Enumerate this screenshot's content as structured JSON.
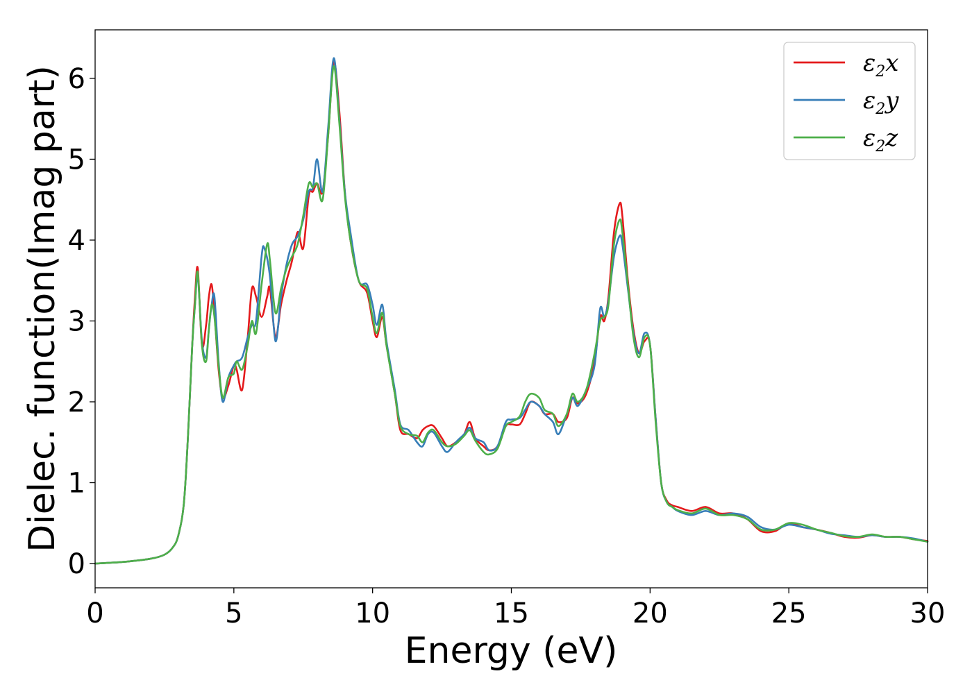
{
  "chart_data": {
    "type": "line",
    "title": "",
    "xlabel": "Energy (eV)",
    "ylabel": "Dielec. function(Imag part)",
    "xlim": [
      0,
      30
    ],
    "ylim": [
      -0.3,
      6.6
    ],
    "xticks": [
      0,
      5,
      10,
      15,
      20,
      25,
      30
    ],
    "yticks": [
      0,
      1,
      2,
      3,
      4,
      5,
      6
    ],
    "grid": false,
    "legend": {
      "position": "top-right"
    },
    "series": [
      {
        "name": "ε₂x",
        "legend_main": "ε",
        "legend_sub": "2",
        "legend_suffix": "x",
        "color": "#e41a1c",
        "x": [
          0,
          1,
          2,
          2.5,
          2.8,
          3.0,
          3.2,
          3.35,
          3.5,
          3.6,
          3.7,
          3.85,
          4.0,
          4.1,
          4.2,
          4.3,
          4.45,
          4.6,
          4.8,
          5.0,
          5.1,
          5.3,
          5.5,
          5.65,
          5.8,
          6.0,
          6.2,
          6.3,
          6.5,
          6.7,
          6.9,
          7.1,
          7.3,
          7.5,
          7.7,
          7.85,
          8.0,
          8.2,
          8.4,
          8.6,
          8.8,
          9.0,
          9.2,
          9.5,
          9.8,
          10.0,
          10.15,
          10.35,
          10.5,
          10.8,
          11.0,
          11.3,
          11.6,
          11.8,
          12.0,
          12.2,
          12.5,
          12.7,
          13.0,
          13.3,
          13.5,
          13.7,
          14.0,
          14.2,
          14.5,
          14.8,
          15.0,
          15.3,
          15.5,
          15.7,
          16.0,
          16.2,
          16.5,
          16.7,
          17.0,
          17.2,
          17.4,
          17.7,
          18.0,
          18.2,
          18.35,
          18.5,
          18.7,
          18.9,
          19.0,
          19.2,
          19.4,
          19.6,
          19.8,
          20.0,
          20.2,
          20.4,
          20.6,
          20.8,
          21.0,
          21.5,
          22.0,
          22.5,
          23.0,
          23.5,
          24.0,
          24.5,
          25.0,
          25.5,
          26.0,
          26.5,
          27.0,
          27.5,
          28.0,
          28.5,
          29.0,
          29.5,
          30.0
        ],
        "y": [
          0.0,
          0.02,
          0.06,
          0.11,
          0.2,
          0.35,
          0.75,
          1.6,
          2.7,
          3.3,
          3.65,
          2.7,
          2.95,
          3.3,
          3.45,
          3.1,
          2.4,
          2.05,
          2.2,
          2.45,
          2.4,
          2.15,
          2.8,
          3.4,
          3.3,
          3.05,
          3.3,
          3.4,
          2.8,
          3.2,
          3.5,
          3.75,
          4.1,
          3.9,
          4.55,
          4.6,
          4.7,
          4.6,
          5.3,
          6.2,
          5.6,
          4.6,
          4.0,
          3.5,
          3.35,
          3.0,
          2.8,
          3.05,
          2.7,
          2.1,
          1.65,
          1.6,
          1.55,
          1.65,
          1.7,
          1.7,
          1.55,
          1.45,
          1.5,
          1.6,
          1.75,
          1.55,
          1.45,
          1.4,
          1.45,
          1.7,
          1.72,
          1.72,
          1.85,
          2.0,
          1.95,
          1.85,
          1.85,
          1.75,
          1.8,
          2.05,
          1.98,
          2.1,
          2.5,
          3.05,
          3.0,
          3.3,
          4.1,
          4.45,
          4.3,
          3.5,
          2.9,
          2.6,
          2.75,
          2.7,
          1.8,
          1.0,
          0.78,
          0.72,
          0.7,
          0.65,
          0.7,
          0.62,
          0.62,
          0.55,
          0.4,
          0.4,
          0.5,
          0.45,
          0.42,
          0.38,
          0.33,
          0.32,
          0.35,
          0.33,
          0.33,
          0.3,
          0.28
        ]
      },
      {
        "name": "ε₂y",
        "legend_main": "ε",
        "legend_sub": "2",
        "legend_suffix": "y",
        "color": "#377eb8",
        "x": [
          0,
          1,
          2,
          2.5,
          2.8,
          3.0,
          3.2,
          3.35,
          3.5,
          3.6,
          3.7,
          3.85,
          4.0,
          4.1,
          4.2,
          4.3,
          4.45,
          4.6,
          4.8,
          5.0,
          5.1,
          5.3,
          5.5,
          5.65,
          5.8,
          6.0,
          6.1,
          6.3,
          6.5,
          6.7,
          6.9,
          7.1,
          7.3,
          7.5,
          7.7,
          7.85,
          8.0,
          8.2,
          8.4,
          8.6,
          8.8,
          9.0,
          9.2,
          9.5,
          9.8,
          10.0,
          10.15,
          10.35,
          10.5,
          10.8,
          11.0,
          11.3,
          11.6,
          11.8,
          12.0,
          12.2,
          12.5,
          12.7,
          13.0,
          13.3,
          13.5,
          13.7,
          14.0,
          14.2,
          14.5,
          14.8,
          15.0,
          15.3,
          15.5,
          15.7,
          16.0,
          16.2,
          16.5,
          16.7,
          17.0,
          17.2,
          17.4,
          17.7,
          18.0,
          18.2,
          18.35,
          18.5,
          18.7,
          18.9,
          19.0,
          19.2,
          19.4,
          19.6,
          19.8,
          20.0,
          20.2,
          20.4,
          20.6,
          20.8,
          21.0,
          21.5,
          22.0,
          22.5,
          23.0,
          23.5,
          24.0,
          24.5,
          25.0,
          25.5,
          26.0,
          26.5,
          27.0,
          27.5,
          28.0,
          28.5,
          29.0,
          29.5,
          30.0
        ],
        "y": [
          0.0,
          0.02,
          0.06,
          0.11,
          0.2,
          0.35,
          0.75,
          1.6,
          2.7,
          3.2,
          3.55,
          2.75,
          2.55,
          2.9,
          3.2,
          3.3,
          2.5,
          2.0,
          2.3,
          2.45,
          2.5,
          2.55,
          2.8,
          2.95,
          3.0,
          3.8,
          3.9,
          3.55,
          2.75,
          3.3,
          3.7,
          3.95,
          4.05,
          4.25,
          4.6,
          4.65,
          5.0,
          4.6,
          5.4,
          6.25,
          5.5,
          4.6,
          4.1,
          3.5,
          3.45,
          3.2,
          2.95,
          3.2,
          2.75,
          2.15,
          1.72,
          1.65,
          1.5,
          1.45,
          1.6,
          1.62,
          1.45,
          1.38,
          1.5,
          1.6,
          1.68,
          1.55,
          1.5,
          1.4,
          1.45,
          1.75,
          1.78,
          1.8,
          1.9,
          2.0,
          1.95,
          1.85,
          1.75,
          1.6,
          1.85,
          2.05,
          1.95,
          2.15,
          2.45,
          3.15,
          3.05,
          3.25,
          3.8,
          4.05,
          3.95,
          3.4,
          2.85,
          2.6,
          2.85,
          2.7,
          1.8,
          1.0,
          0.76,
          0.7,
          0.65,
          0.6,
          0.65,
          0.6,
          0.62,
          0.58,
          0.45,
          0.42,
          0.48,
          0.45,
          0.42,
          0.37,
          0.35,
          0.33,
          0.35,
          0.33,
          0.33,
          0.31,
          0.27
        ]
      },
      {
        "name": "ε₂z",
        "legend_main": "ε",
        "legend_sub": "2",
        "legend_suffix": "z",
        "color": "#4daf4a",
        "x": [
          0,
          1,
          2,
          2.5,
          2.8,
          3.0,
          3.2,
          3.35,
          3.5,
          3.6,
          3.7,
          3.85,
          4.0,
          4.1,
          4.2,
          4.3,
          4.45,
          4.6,
          4.8,
          5.0,
          5.1,
          5.3,
          5.5,
          5.65,
          5.8,
          6.0,
          6.2,
          6.3,
          6.5,
          6.7,
          6.9,
          7.1,
          7.3,
          7.5,
          7.7,
          7.85,
          8.0,
          8.2,
          8.4,
          8.6,
          8.8,
          9.0,
          9.2,
          9.5,
          9.8,
          10.0,
          10.15,
          10.35,
          10.5,
          10.8,
          11.0,
          11.3,
          11.6,
          11.8,
          12.0,
          12.2,
          12.5,
          12.7,
          13.0,
          13.3,
          13.5,
          13.7,
          14.0,
          14.2,
          14.5,
          14.8,
          15.0,
          15.3,
          15.5,
          15.7,
          16.0,
          16.2,
          16.5,
          16.7,
          17.0,
          17.2,
          17.4,
          17.7,
          18.0,
          18.2,
          18.35,
          18.5,
          18.7,
          18.9,
          19.0,
          19.2,
          19.4,
          19.6,
          19.8,
          20.0,
          20.2,
          20.4,
          20.6,
          20.8,
          21.0,
          21.5,
          22.0,
          22.5,
          23.0,
          23.5,
          24.0,
          24.5,
          25.0,
          25.5,
          26.0,
          26.5,
          27.0,
          27.5,
          28.0,
          28.5,
          29.0,
          29.5,
          30.0
        ],
        "y": [
          0.0,
          0.02,
          0.06,
          0.11,
          0.2,
          0.35,
          0.75,
          1.6,
          2.7,
          3.2,
          3.6,
          2.7,
          2.5,
          2.9,
          3.2,
          3.05,
          2.45,
          2.05,
          2.3,
          2.35,
          2.5,
          2.4,
          2.7,
          3.0,
          2.85,
          3.45,
          3.95,
          3.75,
          3.1,
          3.4,
          3.65,
          3.8,
          3.95,
          4.3,
          4.7,
          4.65,
          4.7,
          4.5,
          5.3,
          6.15,
          5.45,
          4.55,
          4.0,
          3.5,
          3.4,
          3.05,
          2.85,
          3.1,
          2.7,
          2.1,
          1.7,
          1.6,
          1.58,
          1.5,
          1.62,
          1.65,
          1.5,
          1.45,
          1.48,
          1.58,
          1.65,
          1.52,
          1.38,
          1.35,
          1.42,
          1.7,
          1.75,
          1.82,
          2.0,
          2.1,
          2.05,
          1.9,
          1.85,
          1.7,
          1.85,
          2.1,
          2.0,
          2.15,
          2.6,
          3.0,
          3.05,
          3.2,
          3.95,
          4.25,
          4.1,
          3.45,
          2.8,
          2.55,
          2.8,
          2.7,
          1.75,
          1.0,
          0.76,
          0.7,
          0.66,
          0.62,
          0.68,
          0.6,
          0.6,
          0.55,
          0.42,
          0.42,
          0.5,
          0.48,
          0.42,
          0.38,
          0.34,
          0.33,
          0.36,
          0.33,
          0.33,
          0.3,
          0.27
        ]
      }
    ]
  }
}
